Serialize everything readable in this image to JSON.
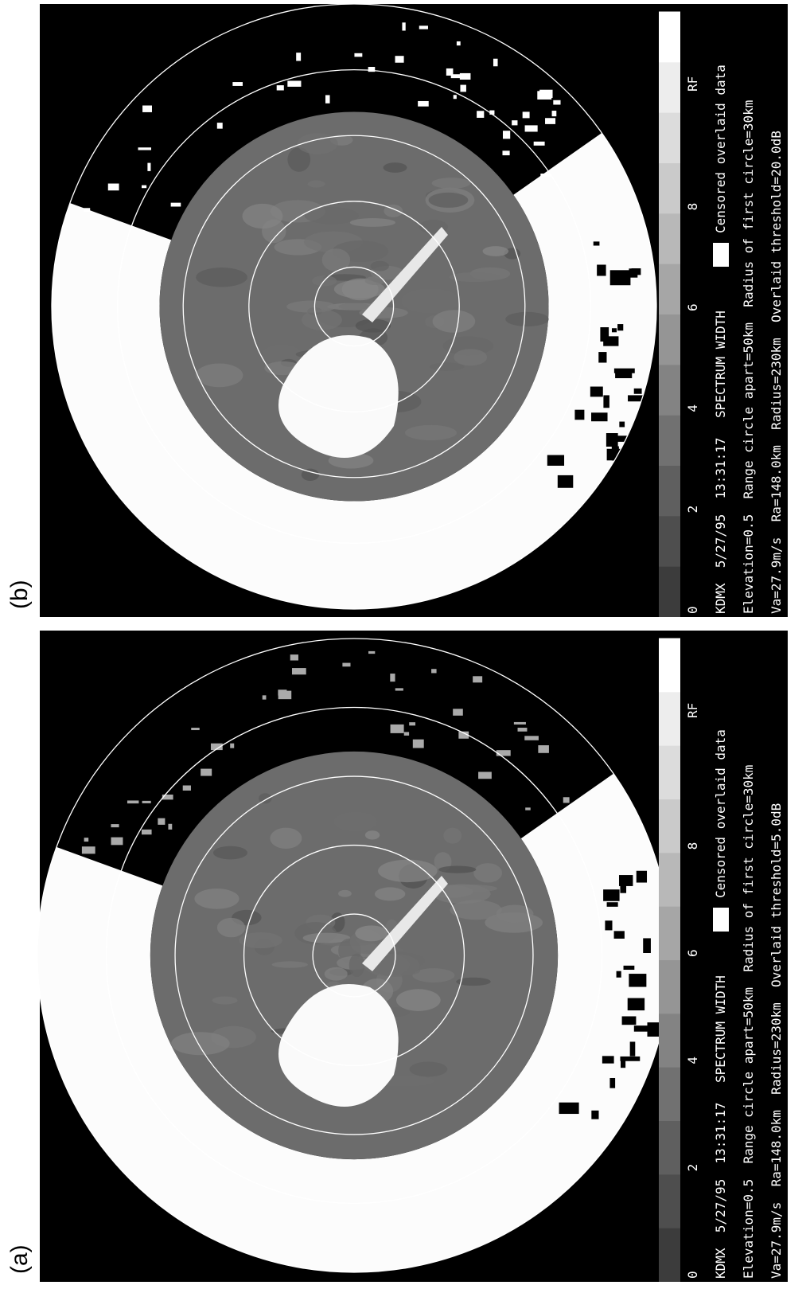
{
  "panels": [
    {
      "label": "(b)",
      "colorbar_labels": [
        "0",
        "2",
        "4",
        "6",
        "8",
        "RF"
      ],
      "header": "KDMX  5/27/95  13:31:17",
      "product": "SPECTRUM WIDTH",
      "legend": "Censored overlaid data",
      "line2": "Elevation=0.5  Range circle apart=50km  Radius of first circle=30km",
      "line3": "Va=27.9m/s  Ra=148.0km  Radius=230km  Overlaid threshold=20.0dB"
    },
    {
      "label": "(a)",
      "colorbar_labels": [
        "0",
        "2",
        "4",
        "6",
        "8",
        "RF"
      ],
      "header": "KDMX  5/27/95  13:31:17",
      "product": "SPECTRUM WIDTH",
      "legend": "Censored overlaid data",
      "line2": "Elevation=0.5  Range circle apart=50km  Radius of first circle=30km",
      "line3": "Va=27.9m/s  Ra=148.0km  Radius=230km  Overlaid threshold=5.0dB"
    }
  ]
}
